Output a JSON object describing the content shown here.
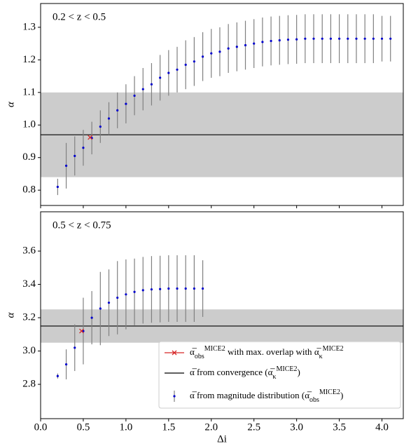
{
  "chart_data": [
    {
      "type": "errorbar",
      "annotation": "0.2 < z < 0.5",
      "ylabel": "α",
      "x": [
        0.2,
        0.3,
        0.4,
        0.5,
        0.6,
        0.7,
        0.8,
        0.9,
        1.0,
        1.1,
        1.2,
        1.3,
        1.4,
        1.5,
        1.6,
        1.7,
        1.8,
        1.9,
        2.0,
        2.1,
        2.2,
        2.3,
        2.4,
        2.5,
        2.6,
        2.7,
        2.8,
        2.9,
        3.0,
        3.1,
        3.2,
        3.3,
        3.4,
        3.5,
        3.6,
        3.7,
        3.8,
        3.9,
        4.0,
        4.1
      ],
      "series": [
        {
          "color": "#0000cc",
          "values": [
            0.81,
            0.875,
            0.905,
            0.93,
            0.96,
            0.995,
            1.02,
            1.045,
            1.065,
            1.09,
            1.11,
            1.125,
            1.145,
            1.16,
            1.17,
            1.185,
            1.195,
            1.21,
            1.22,
            1.225,
            1.235,
            1.24,
            1.245,
            1.25,
            1.255,
            1.258,
            1.26,
            1.262,
            1.263,
            1.265,
            1.265,
            1.265,
            1.265,
            1.265,
            1.265,
            1.265,
            1.265,
            1.265,
            1.265,
            1.265
          ],
          "errors": [
            0.025,
            0.07,
            0.06,
            0.055,
            0.05,
            0.05,
            0.05,
            0.055,
            0.06,
            0.06,
            0.065,
            0.065,
            0.07,
            0.07,
            0.07,
            0.075,
            0.075,
            0.075,
            0.075,
            0.075,
            0.075,
            0.075,
            0.075,
            0.075,
            0.075,
            0.075,
            0.075,
            0.075,
            0.075,
            0.075,
            0.075,
            0.075,
            0.075,
            0.075,
            0.075,
            0.075,
            0.075,
            0.075,
            0.07,
            0.07
          ]
        }
      ],
      "hline": {
        "value": 0.97,
        "color": "#000000"
      },
      "band": {
        "lower": 0.84,
        "upper": 1.1,
        "color": "#cccccc"
      },
      "highlight": {
        "x": 0.58,
        "y": 0.962,
        "color": "#d62728"
      },
      "xlim": [
        0,
        4.25
      ],
      "ylim": [
        0.753,
        1.373
      ],
      "xticks": [
        0,
        0.5,
        1,
        1.5,
        2,
        2.5,
        3,
        3.5,
        4
      ],
      "yticks": [
        0.8,
        0.9,
        {
          "value": 1,
          "label": "1.0"
        },
        1.1,
        1.2,
        1.3
      ]
    },
    {
      "type": "errorbar",
      "annotation": "0.5 < z < 0.75",
      "ylabel": "α",
      "xlabel": "Δi",
      "x": [
        0.2,
        0.3,
        0.4,
        0.5,
        0.6,
        0.7,
        0.8,
        0.9,
        1.0,
        1.1,
        1.2,
        1.3,
        1.4,
        1.5,
        1.6,
        1.7,
        1.8,
        1.9
      ],
      "series": [
        {
          "name": [
            {
              "text": "α̅ from magnitude distribution ("
            },
            {
              "text": "α̅"
            },
            {
              "text": "obs",
              "shift": "sub"
            },
            {
              "text": "MICE2",
              "shift": "super"
            },
            {
              "text": ")"
            }
          ],
          "color": "#0000cc",
          "values": [
            2.85,
            2.92,
            3.02,
            3.12,
            3.2,
            3.255,
            3.29,
            3.32,
            3.34,
            3.355,
            3.365,
            3.37,
            3.372,
            3.375,
            3.375,
            3.375,
            3.375,
            3.375
          ],
          "errors": [
            0.015,
            0.09,
            0.14,
            0.2,
            0.16,
            0.22,
            0.2,
            0.22,
            0.21,
            0.2,
            0.2,
            0.2,
            0.2,
            0.2,
            0.2,
            0.2,
            0.2,
            0.17
          ]
        }
      ],
      "hline": {
        "name": [
          {
            "text": "α̅ from convergence ("
          },
          {
            "text": "α̅"
          },
          {
            "text": "κ",
            "shift": "sub"
          },
          {
            "text": "MICE2",
            "shift": "super"
          },
          {
            "text": ")"
          }
        ],
        "value": 3.15,
        "color": "#000000"
      },
      "band": {
        "lower": 3.05,
        "upper": 3.25,
        "color": "#cccccc"
      },
      "highlight": {
        "name": [
          {
            "text": "α̅"
          },
          {
            "text": "obs",
            "shift": "sub"
          },
          {
            "text": "MICE2",
            "shift": "super"
          },
          {
            "text": " with max. overlap with "
          },
          {
            "text": "α̅"
          },
          {
            "text": "κ",
            "shift": "sub"
          },
          {
            "text": "MICE2",
            "shift": "super"
          }
        ],
        "x": 0.48,
        "y": 3.12,
        "color": "#d62728"
      },
      "legend": "lower right",
      "xlim": [
        0,
        4.25
      ],
      "ylim": [
        2.594,
        3.836
      ],
      "xticks": [
        {
          "value": 0,
          "label": "0.0"
        },
        0.5,
        {
          "value": 1,
          "label": "1.0"
        },
        1.5,
        {
          "value": 2,
          "label": "2.0"
        },
        2.5,
        {
          "value": 3,
          "label": "3.0"
        },
        3.5,
        {
          "value": 4,
          "label": "4.0"
        }
      ],
      "yticks": [
        2.8,
        {
          "value": 3,
          "label": "3.0"
        },
        3.2,
        3.4,
        3.6
      ]
    }
  ]
}
